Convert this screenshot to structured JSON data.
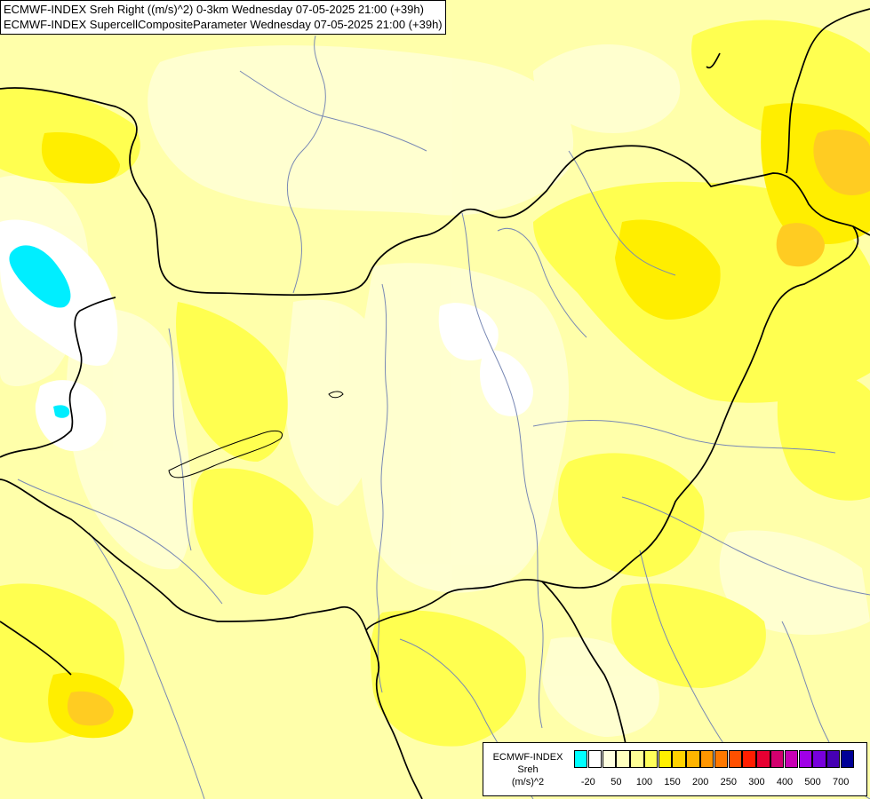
{
  "title": {
    "line1": "ECMWF-INDEX Sreh Right ((m/s)^2) 0-3km Wednesday 07-05-2025 21:00 (+39h)",
    "line2": "ECMWF-INDEX SupercellCompositeParameter Wednesday 07-05-2025 21:00 (+39h)"
  },
  "legend": {
    "title": "ECMWF-INDEX",
    "variable": "Sreh",
    "unit": "(m/s)^2",
    "colors": [
      "#00ffff",
      "#ffffff",
      "#ffffe0",
      "#ffffbe",
      "#ffff96",
      "#ffff5a",
      "#fff000",
      "#ffd200",
      "#ffb400",
      "#ff9600",
      "#ff7800",
      "#ff5000",
      "#ff1e00",
      "#e60032",
      "#d2006e",
      "#c800b4",
      "#a000e6",
      "#7800dc",
      "#4600b4",
      "#000096"
    ],
    "ticks": [
      {
        "label": "-20",
        "index": 0.5
      },
      {
        "label": "50",
        "index": 2.5
      },
      {
        "label": "100",
        "index": 4.5
      },
      {
        "label": "150",
        "index": 6.5
      },
      {
        "label": "200",
        "index": 8.5
      },
      {
        "label": "250",
        "index": 10.5
      },
      {
        "label": "300",
        "index": 12.5
      },
      {
        "label": "400",
        "index": 14.5
      },
      {
        "label": "500",
        "index": 16.5
      },
      {
        "label": "700",
        "index": 18.5
      }
    ]
  },
  "map_colors": {
    "base": "#ffffaa",
    "pale": "#ffffd2",
    "yellow": "#ffff50",
    "bright": "#ffee00",
    "orange": "#ffcc22",
    "white": "#ffffff",
    "cyan": "#00eeff",
    "border": "#000000",
    "river": "#7888b4"
  }
}
